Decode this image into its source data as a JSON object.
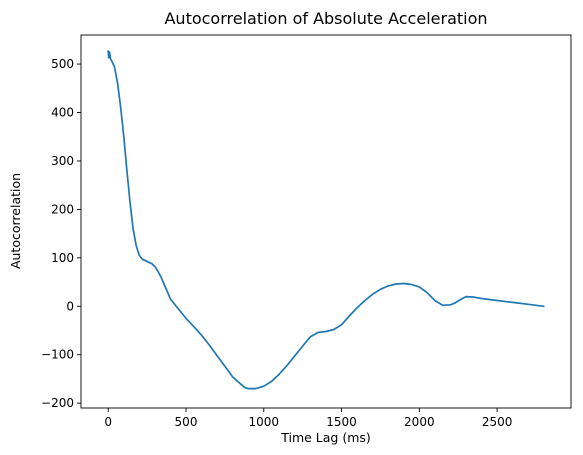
{
  "chart_data": {
    "type": "line",
    "title": "Autocorrelation of Absolute Acceleration",
    "xlabel": "Time Lag (ms)",
    "ylabel": "Autocorrelation",
    "xlim": [
      -175,
      2975
    ],
    "ylim": [
      -210,
      560
    ],
    "xticks": [
      0,
      500,
      1000,
      1500,
      2000,
      2500
    ],
    "yticks": [
      -200,
      -100,
      0,
      100,
      200,
      300,
      400,
      500
    ],
    "grid": false,
    "series": [
      {
        "color": "#1f77b4",
        "x": [
          0,
          3,
          8,
          15,
          20,
          40,
          60,
          80,
          100,
          120,
          140,
          160,
          180,
          200,
          220,
          240,
          260,
          280,
          300,
          320,
          340,
          360,
          380,
          400,
          450,
          500,
          550,
          600,
          650,
          700,
          750,
          800,
          850,
          880,
          900,
          950,
          1000,
          1050,
          1100,
          1150,
          1200,
          1250,
          1300,
          1350,
          1400,
          1450,
          1500,
          1550,
          1600,
          1650,
          1700,
          1750,
          1800,
          1850,
          1900,
          1950,
          2000,
          2050,
          2100,
          2150,
          2200,
          2230,
          2260,
          2300,
          2350,
          2380,
          2400,
          2500,
          2600,
          2700,
          2800
        ],
        "y": [
          527,
          513,
          525,
          510,
          508,
          495,
          460,
          410,
          350,
          280,
          215,
          160,
          125,
          105,
          97,
          94,
          91,
          88,
          82,
          72,
          60,
          45,
          30,
          15,
          -5,
          -25,
          -42,
          -60,
          -80,
          -102,
          -124,
          -146,
          -160,
          -168,
          -170,
          -170,
          -165,
          -155,
          -140,
          -122,
          -102,
          -82,
          -63,
          -54,
          -52,
          -48,
          -38,
          -20,
          -3,
          12,
          25,
          35,
          42,
          46,
          47,
          45,
          40,
          28,
          12,
          2,
          3,
          7,
          13,
          20,
          19,
          17,
          16,
          12,
          8,
          4,
          0
        ]
      }
    ]
  }
}
